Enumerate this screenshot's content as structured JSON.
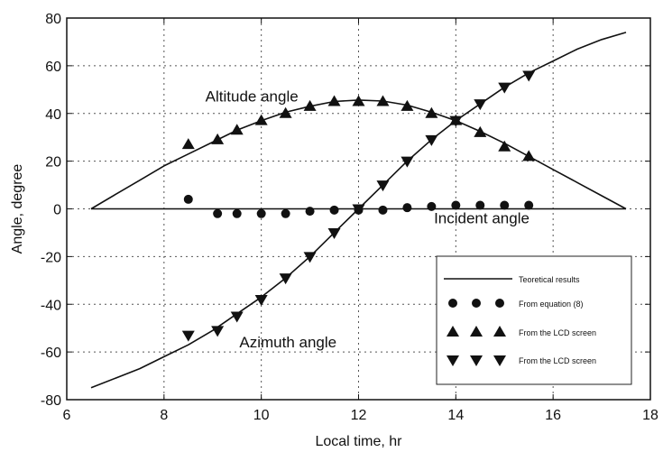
{
  "chart_data": {
    "type": "line",
    "xlabel": "Local time, hr",
    "ylabel": "Angle, degree",
    "xlim": [
      6,
      18
    ],
    "ylim": [
      -80,
      80
    ],
    "xticks": [
      6,
      8,
      10,
      12,
      14,
      16,
      18
    ],
    "yticks": [
      -80,
      -60,
      -40,
      -20,
      0,
      20,
      40,
      60,
      80
    ],
    "grid": true,
    "grid_style": "dotted",
    "legend_position": "bottom-right",
    "annotations": [
      {
        "text": "Altitude angle",
        "x": 8.85,
        "y": 45
      },
      {
        "text": "Incident angle",
        "x": 13.55,
        "y": -6
      },
      {
        "text": "Azimuth angle",
        "x": 9.55,
        "y": -58
      }
    ],
    "legend": [
      {
        "marker": "line",
        "label": "Teoretical results"
      },
      {
        "marker": "circle",
        "label": "From equation (8)"
      },
      {
        "marker": "triangle-up",
        "label": "From the LCD screen"
      },
      {
        "marker": "triangle-down",
        "label": "From the LCD screen"
      }
    ],
    "series": [
      {
        "marker": "line",
        "x": [
          6.5,
          7,
          7.5,
          8,
          8.5,
          9,
          9.5,
          10,
          10.5,
          11,
          11.5,
          12,
          12.5,
          13,
          13.5,
          14,
          14.5,
          15,
          15.5,
          16,
          16.5,
          17,
          17.5
        ],
        "y": [
          0,
          6,
          12,
          18,
          23,
          28,
          33,
          37,
          40.5,
          43,
          45,
          45.6,
          45.2,
          43.5,
          40.5,
          37,
          32.5,
          27.5,
          22,
          16.5,
          11,
          5.5,
          0
        ]
      },
      {
        "marker": "line",
        "x": [
          6.5,
          7,
          7.5,
          8,
          8.5,
          9,
          9.5,
          10,
          10.5,
          11,
          11.5,
          12,
          12.5,
          13,
          13.5,
          14,
          14.5,
          15,
          15.5,
          16,
          16.5,
          17,
          17.5
        ],
        "y": [
          -75,
          -71,
          -67,
          -62,
          -57,
          -51,
          -44,
          -37,
          -29,
          -20,
          -10,
          0,
          10,
          20,
          29,
          37,
          44,
          51,
          57,
          62,
          67,
          71,
          74
        ]
      },
      {
        "marker": "line",
        "x": [
          6.5,
          17.5
        ],
        "y": [
          0,
          0
        ]
      },
      {
        "marker": "circle",
        "x": [
          8.5,
          9.1,
          9.5,
          10,
          10.5,
          11,
          11.5,
          12,
          12.5,
          13,
          13.5,
          14,
          14.5,
          15,
          15.5
        ],
        "y": [
          4,
          -2,
          -2,
          -2,
          -2,
          -1,
          -0.5,
          -0.5,
          -0.5,
          0.5,
          1,
          1.5,
          1.5,
          1.5,
          1.5
        ]
      },
      {
        "marker": "triangle-up",
        "x": [
          8.5,
          9.1,
          9.5,
          10,
          10.5,
          11,
          11.5,
          12,
          12.5,
          13,
          13.5,
          14,
          14.5,
          15,
          15.5
        ],
        "y": [
          27,
          29,
          33,
          37,
          40,
          43,
          45,
          45,
          45,
          43,
          40,
          37,
          32,
          26,
          22
        ]
      },
      {
        "marker": "triangle-down",
        "x": [
          8.5,
          9.1,
          9.5,
          10,
          10.5,
          11,
          11.5,
          12,
          12.5,
          13,
          13.5,
          14,
          14.5,
          15,
          15.5
        ],
        "y": [
          -53,
          -51,
          -45,
          -38,
          -29,
          -20,
          -10,
          0,
          10,
          20,
          29,
          37,
          44,
          51,
          56
        ]
      }
    ]
  }
}
